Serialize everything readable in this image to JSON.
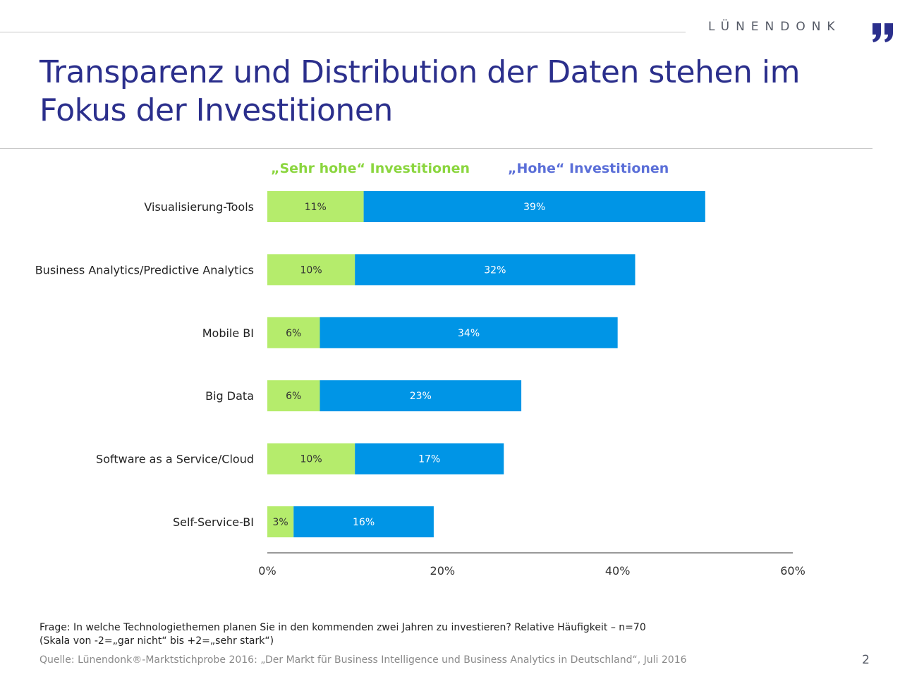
{
  "brand": {
    "name": "LÜNENDONK"
  },
  "title": "Transparenz und Distribution der Daten stehen im Fokus der Investitionen",
  "colors": {
    "title": "#2b2f8c",
    "sehr_hohe": "#b5ec6c",
    "hohe": "#0095e6",
    "legend_sehr_hohe": "#8bd63f",
    "legend_hohe": "#5b6fd8",
    "brand_mark": "#2b2f8c"
  },
  "chart_data": {
    "type": "bar",
    "orientation": "horizontal",
    "stacked": true,
    "categories": [
      "Visualisierung-Tools",
      "Business Analytics/Predictive Analytics",
      "Mobile BI",
      "Big Data",
      "Software as a Service/Cloud",
      "Self-Service-BI"
    ],
    "series": [
      {
        "name": "„Sehr hohe“ Investitionen",
        "values": [
          11,
          10,
          6,
          6,
          10,
          3
        ]
      },
      {
        "name": "„Hohe“ Investitionen",
        "values": [
          39,
          32,
          34,
          23,
          17,
          16
        ]
      }
    ],
    "xlim": [
      0,
      60
    ],
    "xticks": [
      "0%",
      "20%",
      "40%",
      "60%"
    ],
    "xtick_values": [
      0,
      20,
      40,
      60
    ],
    "value_suffix": "%",
    "legend_position": "top",
    "grid": false
  },
  "footer": {
    "question_line1": "Frage: In welche Technologiethemen planen Sie in den kommenden zwei Jahren zu investieren? Relative Häufigkeit – n=70",
    "question_line2": "(Skala von -2=„gar nicht“ bis +2=„sehr stark“)",
    "source": "Quelle: Lünendonk®-Marktstichprobe 2016: „Der Markt für Business Intelligence und Business Analytics in Deutschland“, Juli 2016",
    "page_number": "2"
  }
}
